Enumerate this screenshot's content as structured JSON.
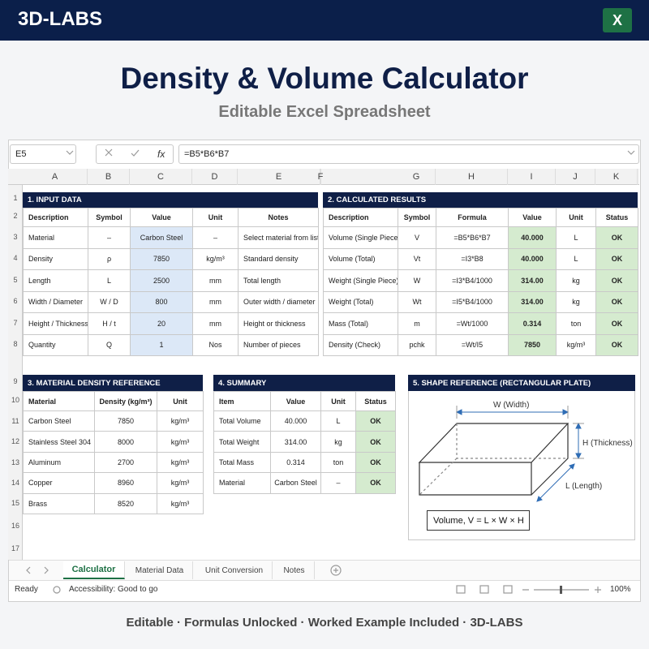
{
  "header": {
    "brand": "3D-LABS",
    "app_icon": "X"
  },
  "title": "Density & Volume Calculator",
  "subtitle": "Editable Excel Spreadsheet",
  "formula_bar": {
    "name_box": "E5",
    "fx": "fx",
    "formula": "=B5*B6*B7"
  },
  "columns": [
    "A",
    "B",
    "C",
    "D",
    "E",
    "F",
    "G",
    "H",
    "I",
    "J",
    "K"
  ],
  "rows": [
    "1",
    "2",
    "3",
    "4",
    "5",
    "6",
    "7",
    "8",
    "9",
    "10",
    "11",
    "12",
    "13",
    "14",
    "15",
    "16",
    "17"
  ],
  "input_data": {
    "title": "1. INPUT DATA",
    "header": [
      "Description",
      "Symbol",
      "Value",
      "Unit",
      "Notes"
    ],
    "rows": [
      [
        "Material",
        "–",
        "Carbon Steel",
        "–",
        "Select material from list"
      ],
      [
        "Density",
        "ρ",
        "7850",
        "kg/m³",
        "Standard density"
      ],
      [
        "Length",
        "L",
        "2500",
        "mm",
        "Total length"
      ],
      [
        "Width / Diameter",
        "W / D",
        "800",
        "mm",
        "Outer width / diameter"
      ],
      [
        "Height / Thickness",
        "H / t",
        "20",
        "mm",
        "Height or thickness"
      ],
      [
        "Quantity",
        "Q",
        "1",
        "Nos",
        "Number of pieces"
      ]
    ]
  },
  "calculated_results": {
    "title": "2. CALCULATED RESULTS",
    "header": [
      "Description",
      "Symbol",
      "Formula",
      "Value",
      "Unit",
      "Status"
    ],
    "rows": [
      [
        "Volume (Single Piece)",
        "V",
        "=B5*B6*B7",
        "40.000",
        "L",
        "OK"
      ],
      [
        "Volume (Total)",
        "Vt",
        "=I3*B8",
        "40.000",
        "L",
        "OK"
      ],
      [
        "Weight (Single Piece)",
        "W",
        "=I3*B4/1000",
        "314.00",
        "kg",
        "OK"
      ],
      [
        "Weight (Total)",
        "Wt",
        "=I5*B4/1000",
        "314.00",
        "kg",
        "OK"
      ],
      [
        "Mass (Total)",
        "m",
        "=Wt/1000",
        "0.314",
        "ton",
        "OK"
      ],
      [
        "Density (Check)",
        "pchk",
        "=Wt/I5",
        "7850",
        "kg/m³",
        "OK"
      ]
    ]
  },
  "material_density_reference": {
    "title": "3. MATERIAL DENSITY REFERENCE",
    "header": [
      "Material",
      "Density (kg/m³)",
      "Unit"
    ],
    "rows": [
      [
        "Carbon Steel",
        "7850",
        "kg/m³"
      ],
      [
        "Stainless Steel 304",
        "8000",
        "kg/m³"
      ],
      [
        "Aluminum",
        "2700",
        "kg/m³"
      ],
      [
        "Copper",
        "8960",
        "kg/m³"
      ],
      [
        "Brass",
        "8520",
        "kg/m³"
      ]
    ]
  },
  "summary": {
    "title": "4. SUMMARY",
    "header": [
      "Item",
      "Value",
      "Unit",
      "Status"
    ],
    "rows": [
      [
        "Total Volume",
        "40.000",
        "L",
        "OK"
      ],
      [
        "Total Weight",
        "314.00",
        "kg",
        "OK"
      ],
      [
        "Total Mass",
        "0.314",
        "ton",
        "OK"
      ],
      [
        "Material",
        "Carbon Steel",
        "–",
        "OK"
      ]
    ]
  },
  "shape_reference": {
    "title": "5. SHAPE REFERENCE (RECTANGULAR PLATE)",
    "width_label": "W (Width)",
    "height_label": "H (Thickness)",
    "length_label": "L (Length)",
    "formula": "Volume, V = L × W × H"
  },
  "sheet_tabs": [
    "Calculator",
    "Material Data",
    "Unit Conversion",
    "Notes"
  ],
  "status_bar": {
    "ready": "Ready",
    "accessibility": "Accessibility: Good to go",
    "zoom": "100%"
  },
  "footer": "Editable · Formulas Unlocked · Worked Example Included · 3D-LABS"
}
